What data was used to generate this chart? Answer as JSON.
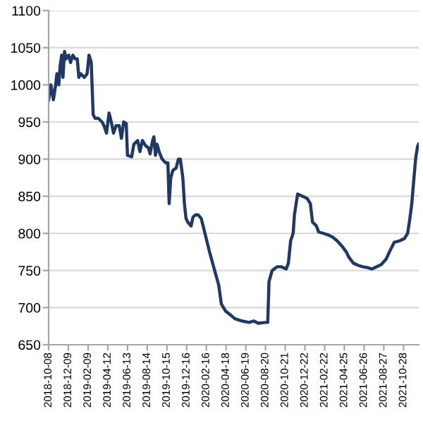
{
  "chart_data": {
    "type": "line",
    "x": [
      "2018-10-08",
      "2018-10-15",
      "2018-10-23",
      "2018-10-30",
      "2018-11-03",
      "2018-11-09",
      "2018-11-13",
      "2018-11-18",
      "2018-11-22",
      "2018-11-27",
      "2018-12-02",
      "2018-12-10",
      "2018-12-16",
      "2018-12-23",
      "2018-12-30",
      "2019-01-06",
      "2019-01-11",
      "2019-01-17",
      "2019-01-28",
      "2019-02-06",
      "2019-02-12",
      "2019-02-19",
      "2019-02-25",
      "2019-03-03",
      "2019-03-13",
      "2019-03-25",
      "2019-03-31",
      "2019-04-08",
      "2019-04-16",
      "2019-04-23",
      "2019-04-30",
      "2019-05-08",
      "2019-05-18",
      "2019-05-25",
      "2019-06-01",
      "2019-06-09",
      "2019-06-13",
      "2019-06-26",
      "2019-07-03",
      "2019-07-15",
      "2019-07-22",
      "2019-07-30",
      "2019-08-09",
      "2019-08-18",
      "2019-08-23",
      "2019-08-31",
      "2019-09-04",
      "2019-09-09",
      "2019-09-14",
      "2019-09-22",
      "2019-09-30",
      "2019-10-11",
      "2019-10-18",
      "2019-10-22",
      "2019-10-27",
      "2019-11-03",
      "2019-11-13",
      "2019-11-20",
      "2019-11-26",
      "2019-12-04",
      "2019-12-09",
      "2019-12-14",
      "2019-12-20",
      "2019-12-30",
      "2020-01-05",
      "2020-01-13",
      "2020-01-21",
      "2020-01-31",
      "2020-02-26",
      "2020-03-26",
      "2020-04-03",
      "2020-04-17",
      "2020-05-02",
      "2020-05-16",
      "2020-06-07",
      "2020-06-29",
      "2020-07-14",
      "2020-07-28",
      "2020-08-19",
      "2020-08-27",
      "2020-08-31",
      "2020-09-10",
      "2020-09-25",
      "2020-10-09",
      "2020-10-24",
      "2020-10-31",
      "2020-11-07",
      "2020-11-15",
      "2020-11-19",
      "2020-11-29",
      "2020-12-14",
      "2020-12-29",
      "2021-01-08",
      "2021-01-15",
      "2021-01-27",
      "2021-02-03",
      "2021-02-18",
      "2021-03-04",
      "2021-03-19",
      "2021-04-02",
      "2021-04-17",
      "2021-05-01",
      "2021-05-09",
      "2021-05-23",
      "2021-06-07",
      "2021-06-22",
      "2021-07-06",
      "2021-07-21",
      "2021-08-04",
      "2021-08-19",
      "2021-09-03",
      "2021-09-17",
      "2021-09-29",
      "2021-10-16",
      "2021-10-31",
      "2021-11-10",
      "2021-11-17",
      "2021-11-23",
      "2021-11-29",
      "2021-12-05",
      "2021-12-11",
      "2021-12-14"
    ],
    "values": [
      980,
      1000,
      980,
      1000,
      1015,
      1000,
      1025,
      1040,
      1010,
      1045,
      1035,
      1040,
      1030,
      1040,
      1035,
      1035,
      1010,
      1015,
      1010,
      1015,
      1040,
      1030,
      960,
      955,
      955,
      950,
      945,
      935,
      962,
      950,
      935,
      945,
      945,
      928,
      950,
      948,
      905,
      903,
      920,
      925,
      910,
      925,
      918,
      915,
      907,
      925,
      930,
      905,
      920,
      908,
      900,
      895,
      895,
      840,
      875,
      885,
      888,
      900,
      900,
      875,
      840,
      820,
      815,
      810,
      822,
      825,
      825,
      820,
      775,
      730,
      705,
      695,
      690,
      685,
      682,
      680,
      682,
      679,
      680,
      680,
      735,
      750,
      755,
      755,
      752,
      760,
      790,
      800,
      825,
      853,
      850,
      847,
      840,
      815,
      810,
      802,
      800,
      798,
      795,
      790,
      783,
      775,
      768,
      760,
      757,
      755,
      754,
      752,
      755,
      758,
      765,
      778,
      788,
      790,
      793,
      800,
      820,
      840,
      870,
      900,
      917,
      920
    ],
    "color": "#1f3864",
    "line_style": "solid",
    "marker": "none",
    "grid": "y",
    "legend": false,
    "xlim": [
      "2018-10-08",
      "2021-12-15"
    ],
    "xticks": [
      "2018-10-08",
      "2018-12-09",
      "2019-02-09",
      "2019-04-12",
      "2019-06-13",
      "2019-08-14",
      "2019-10-15",
      "2019-12-16",
      "2020-02-16",
      "2020-04-18",
      "2020-06-19",
      "2020-08-20",
      "2020-10-21",
      "2020-12-22",
      "2021-02-22",
      "2021-04-25",
      "2021-06-26",
      "2021-08-27",
      "2021-10-28"
    ],
    "ylim": [
      650,
      1100
    ],
    "yticks": [
      650,
      700,
      750,
      800,
      850,
      900,
      950,
      1000,
      1050,
      1100
    ]
  }
}
